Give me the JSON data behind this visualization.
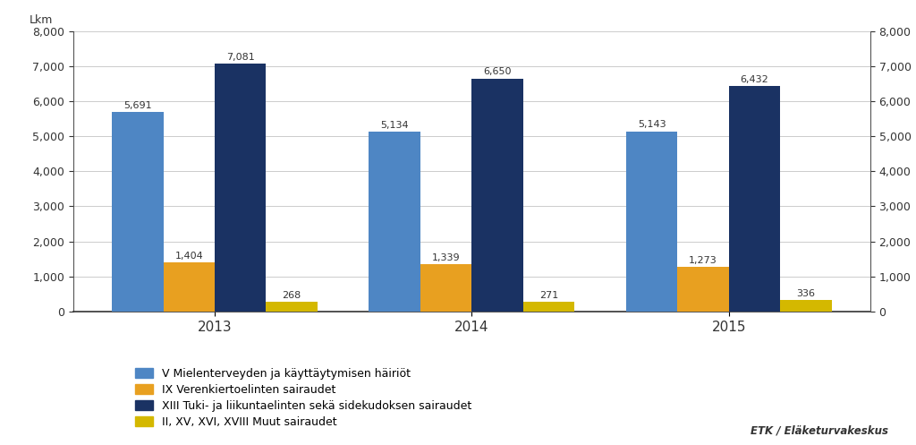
{
  "years": [
    "2013",
    "2014",
    "2015"
  ],
  "series": [
    {
      "label": "V Mielenterveyden ja käyttäytymisen häiriöt",
      "color": "#4E86C4",
      "values": [
        5691,
        5134,
        5143
      ]
    },
    {
      "label": "IX Verenkiertoelinten sairaudet",
      "color": "#E8A020",
      "values": [
        1404,
        1339,
        1273
      ]
    },
    {
      "label": "XIII Tuki- ja liikuntaelinten sekä sidekudoksen sairaudet",
      "color": "#1A3263",
      "values": [
        7081,
        6650,
        6432
      ]
    },
    {
      "label": "II, XV, XVI, XVIII Muut sairaudet",
      "color": "#D4B800",
      "values": [
        268,
        271,
        336
      ]
    }
  ],
  "ylabel_left": "Lkm",
  "ylim": [
    0,
    8000
  ],
  "yticks": [
    0,
    1000,
    2000,
    3000,
    4000,
    5000,
    6000,
    7000,
    8000
  ],
  "source_text": "ETK / Eläketurvakeskus",
  "bg_color": "#FFFFFF",
  "plot_bg_color": "#FFFFFF",
  "bar_width": 0.2,
  "label_fontsize": 8,
  "tick_fontsize": 9,
  "legend_fontsize": 9
}
